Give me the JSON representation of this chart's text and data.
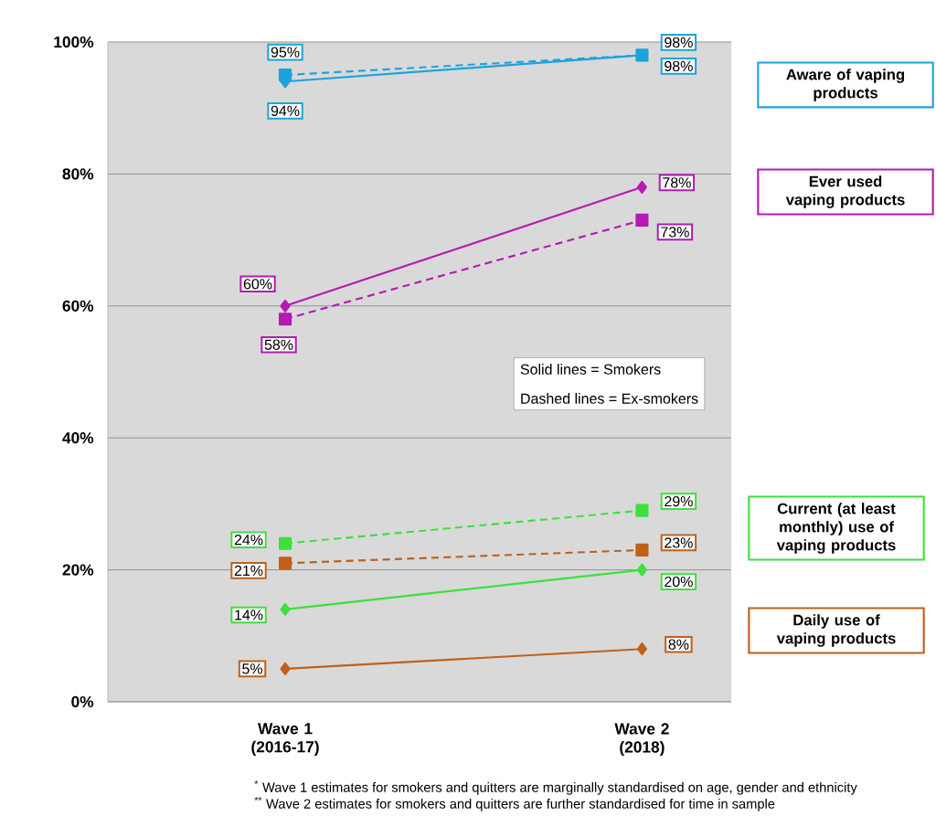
{
  "chart_data": {
    "type": "line",
    "categories": [
      "Wave 1 (2016-17)",
      "Wave 2 (2018)"
    ],
    "ylim": [
      0,
      100
    ],
    "yticks": [
      {
        "value": 0,
        "label": "0%"
      },
      {
        "value": 20,
        "label": "20%"
      },
      {
        "value": 40,
        "label": "40%"
      },
      {
        "value": 60,
        "label": "60%"
      },
      {
        "value": 80,
        "label": "80%"
      },
      {
        "value": 100,
        "label": "100%"
      }
    ],
    "grid": "y",
    "series": [
      {
        "name": "Aware of vaping products",
        "color": "#1ca3dc",
        "values": [
          94,
          98
        ],
        "value_labels": [
          "94%",
          "98%"
        ],
        "marker": "diamond",
        "line_style": "solid"
      },
      {
        "color": "#1ca3dc",
        "values": [
          95,
          98
        ],
        "value_labels": [
          "95%",
          "98%"
        ],
        "marker": "square",
        "line_style": "dashed"
      },
      {
        "name": "Ever used vaping products",
        "color": "#b41ab4",
        "values": [
          60,
          78
        ],
        "value_labels": [
          "60%",
          "78%"
        ],
        "marker": "diamond",
        "line_style": "solid"
      },
      {
        "color": "#b41ab4",
        "values": [
          58,
          73
        ],
        "value_labels": [
          "58%",
          "73%"
        ],
        "marker": "square",
        "line_style": "dashed"
      },
      {
        "name": "Current (at least monthly) use of vaping products",
        "color": "#3ee03e",
        "values": [
          14,
          20
        ],
        "value_labels": [
          "14%",
          "20%"
        ],
        "marker": "diamond",
        "line_style": "solid"
      },
      {
        "color": "#3ee03e",
        "values": [
          24,
          29
        ],
        "value_labels": [
          "24%",
          "29%"
        ],
        "marker": "square",
        "line_style": "dashed"
      },
      {
        "name": "Daily use of vaping products",
        "color": "#c0601a",
        "values": [
          5,
          8
        ],
        "value_labels": [
          "5%",
          "8%"
        ],
        "marker": "diamond",
        "line_style": "solid"
      },
      {
        "color": "#c0601a",
        "values": [
          21,
          23
        ],
        "value_labels": [
          "21%",
          "23%"
        ],
        "marker": "square",
        "line_style": "dashed"
      }
    ],
    "annotations": [
      "Solid lines = Smokers",
      "Dashed lines = Ex-smokers",
      "$^{*}$ Wave 1 estimates for smokers and quitters are marginally standardised on age, gender and ethnicity",
      "$^{**}$ Wave 2 estimates for smokers and quitters are further standardised for time in sample"
    ]
  }
}
